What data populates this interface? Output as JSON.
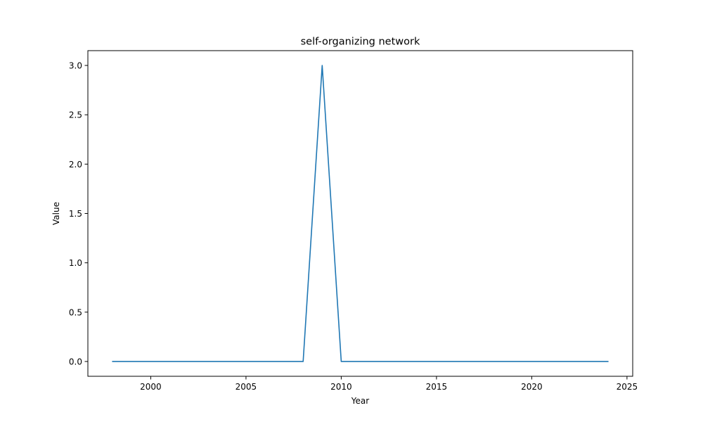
{
  "chart_data": {
    "type": "line",
    "title": "self-organizing network",
    "xlabel": "Year",
    "ylabel": "Value",
    "xlim": [
      1996.7,
      2025.3
    ],
    "ylim": [
      -0.15,
      3.15
    ],
    "xticks": [
      2000,
      2005,
      2010,
      2015,
      2020,
      2025
    ],
    "yticks": [
      0.0,
      0.5,
      1.0,
      1.5,
      2.0,
      2.5,
      3.0
    ],
    "xtick_labels": [
      "2000",
      "2005",
      "2010",
      "2015",
      "2020",
      "2025"
    ],
    "ytick_labels": [
      "0.0",
      "0.5",
      "1.0",
      "1.5",
      "2.0",
      "2.5",
      "3.0"
    ],
    "grid": false,
    "series": [
      {
        "color": "#1f77b4",
        "x": [
          1998,
          1999,
          2000,
          2001,
          2002,
          2003,
          2004,
          2005,
          2006,
          2007,
          2008,
          2009,
          2010,
          2011,
          2012,
          2013,
          2014,
          2015,
          2016,
          2017,
          2018,
          2019,
          2020,
          2021,
          2022,
          2023,
          2024
        ],
        "y": [
          0,
          0,
          0,
          0,
          0,
          0,
          0,
          0,
          0,
          0,
          0,
          3,
          0,
          0,
          0,
          0,
          0,
          0,
          0,
          0,
          0,
          0,
          0,
          0,
          0,
          0,
          0
        ]
      }
    ]
  }
}
